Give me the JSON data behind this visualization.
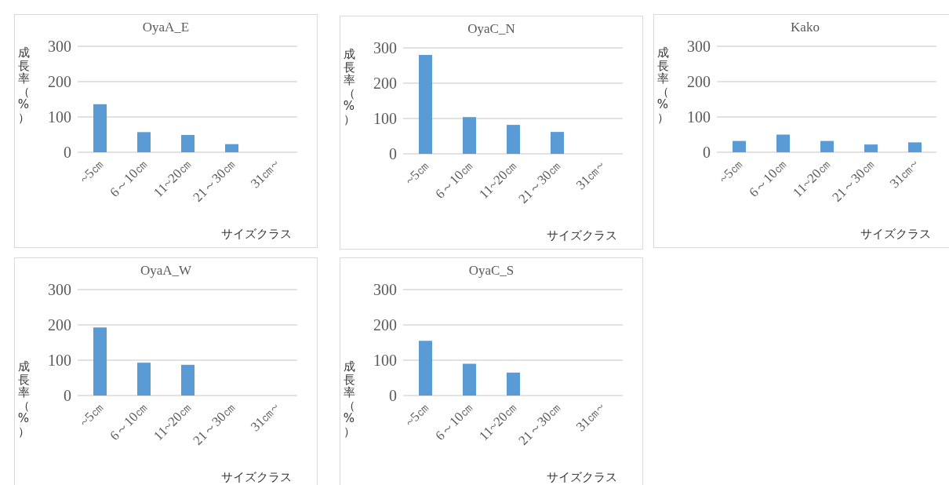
{
  "chart_data": [
    {
      "type": "bar",
      "title": "OyaA_E",
      "xlabel": "サイズクラス",
      "ylabel": "成長率（%）",
      "categories": [
        "~5㎝",
        "6～10㎝",
        "11~20㎝",
        "21～30㎝",
        "31㎝~"
      ],
      "values": [
        136,
        57,
        49,
        23,
        null
      ],
      "color": "#5b9bd5",
      "ylim": [
        0,
        300
      ],
      "yticks": [
        0,
        100,
        200,
        300
      ],
      "grid": "y"
    },
    {
      "type": "bar",
      "title": "OyaC_N",
      "xlabel": "サイズクラス",
      "ylabel": "成長率（%）",
      "categories": [
        "~5㎝",
        "6～10㎝",
        "11~20㎝",
        "21～30㎝",
        "31㎝~"
      ],
      "values": [
        280,
        104,
        82,
        62,
        null
      ],
      "color": "#5b9bd5",
      "ylim": [
        0,
        300
      ],
      "yticks": [
        0,
        100,
        200,
        300
      ],
      "grid": "y"
    },
    {
      "type": "bar",
      "title": "Kako",
      "xlabel": "サイズクラス",
      "ylabel": "成長率（%）",
      "categories": [
        "~5㎝",
        "6～10㎝",
        "11~20㎝",
        "21～30㎝",
        "31㎝~"
      ],
      "values": [
        32,
        50,
        32,
        22,
        28
      ],
      "color": "#5b9bd5",
      "ylim": [
        0,
        300
      ],
      "yticks": [
        0,
        100,
        200,
        300
      ],
      "grid": "y"
    },
    {
      "type": "bar",
      "title": "OyaA_W",
      "xlabel": "サイズクラス",
      "ylabel": "成長率（%）",
      "categories": [
        "~5㎝",
        "6～10㎝",
        "11~20㎝",
        "21～30㎝",
        "31㎝~"
      ],
      "values": [
        193,
        93,
        87,
        null,
        null
      ],
      "color": "#5b9bd5",
      "ylim": [
        0,
        300
      ],
      "yticks": [
        0,
        100,
        200,
        300
      ],
      "grid": "y"
    },
    {
      "type": "bar",
      "title": "OyaC_S",
      "xlabel": "サイズクラス",
      "ylabel": "成長率（%）",
      "categories": [
        "~5㎝",
        "6～10㎝",
        "11~20㎝",
        "21～30㎝",
        "31㎝~"
      ],
      "values": [
        155,
        90,
        65,
        null,
        null
      ],
      "color": "#5b9bd5",
      "ylim": [
        0,
        300
      ],
      "yticks": [
        0,
        100,
        200,
        300
      ],
      "grid": "y"
    }
  ]
}
